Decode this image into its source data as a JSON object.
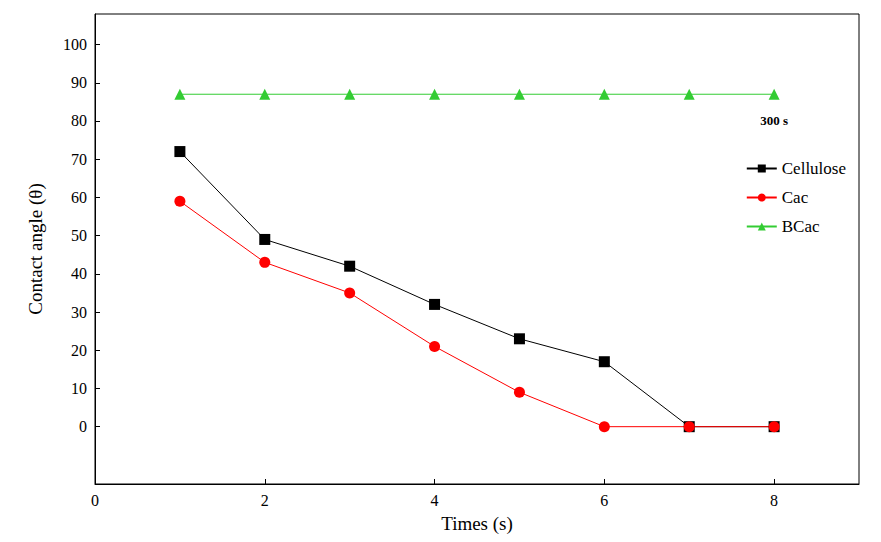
{
  "chart_data": {
    "type": "line",
    "x_label": "Times (s)",
    "y_label": "Contact angle (θ)",
    "xlim": [
      0,
      9
    ],
    "xticks": [
      0,
      2,
      4,
      6,
      8
    ],
    "ylim": [
      -15,
      108
    ],
    "yticks": [
      0,
      10,
      20,
      30,
      40,
      50,
      60,
      70,
      80,
      90,
      100
    ],
    "grid": false,
    "legend": "right",
    "annotation": "300 s",
    "x": [
      1,
      2,
      3,
      4,
      5,
      6,
      7,
      8
    ],
    "series": [
      {
        "name": "Cellulose",
        "color": "#000000",
        "marker": "square",
        "values": [
          72,
          49,
          42,
          32,
          23,
          17,
          0,
          0
        ]
      },
      {
        "name": "Cac",
        "color": "#ff0000",
        "marker": "circle",
        "values": [
          59,
          43,
          35,
          21,
          9,
          0,
          0,
          0
        ]
      },
      {
        "name": "BCac",
        "color": "#33cc33",
        "marker": "triangle",
        "values": [
          87,
          87,
          87,
          87,
          87,
          87,
          87,
          87
        ]
      }
    ]
  }
}
